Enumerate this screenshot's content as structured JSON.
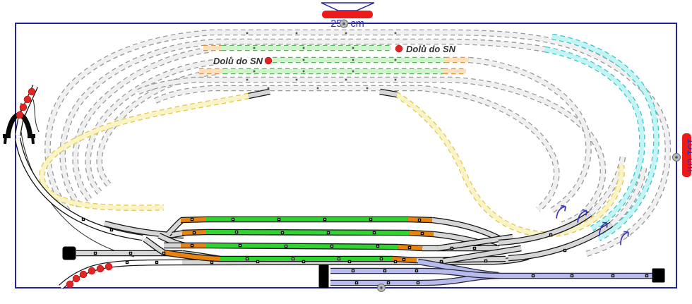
{
  "dimensions": {
    "top": {
      "label": "252 cm"
    },
    "right": {
      "label": "101 cm"
    }
  },
  "annotations": {
    "descend_note_right": "Dolů do SN",
    "descend_note_left": "Dolů do SN"
  },
  "colors": {
    "board_border": "#24249a",
    "dimension_bar": "#ee1a1a",
    "dimension_text": "#2b2bb4",
    "note_text": "#333333",
    "gradient_marker": "#e02525",
    "arrow": "#3a3ab8",
    "buffer": "#000000",
    "outline": "#161616",
    "station_track": "#2fd42f",
    "station_track_end": "#e8830e",
    "visible_track": "#d7d7d7",
    "visible_white_track": "#ffffff",
    "siding_track": "#b7bcec",
    "siding_outline": "#25253a",
    "hidden_yard_fill": "#cdf5c9",
    "hidden_yard_edge": "#53b953",
    "hidden_yard_end_fill": "#fadfba",
    "hidden_yard_end_edge": "#e2953f",
    "hidden_loop_fill": "#f0f0f0",
    "hidden_loop_edge": "#9a9a9a",
    "hidden_upper_fill": "#c2f4f3",
    "hidden_upper_edge": "#3cc6ce",
    "hidden_incline_fill": "#faf3c4",
    "hidden_incline_edge": "#ddca55"
  }
}
